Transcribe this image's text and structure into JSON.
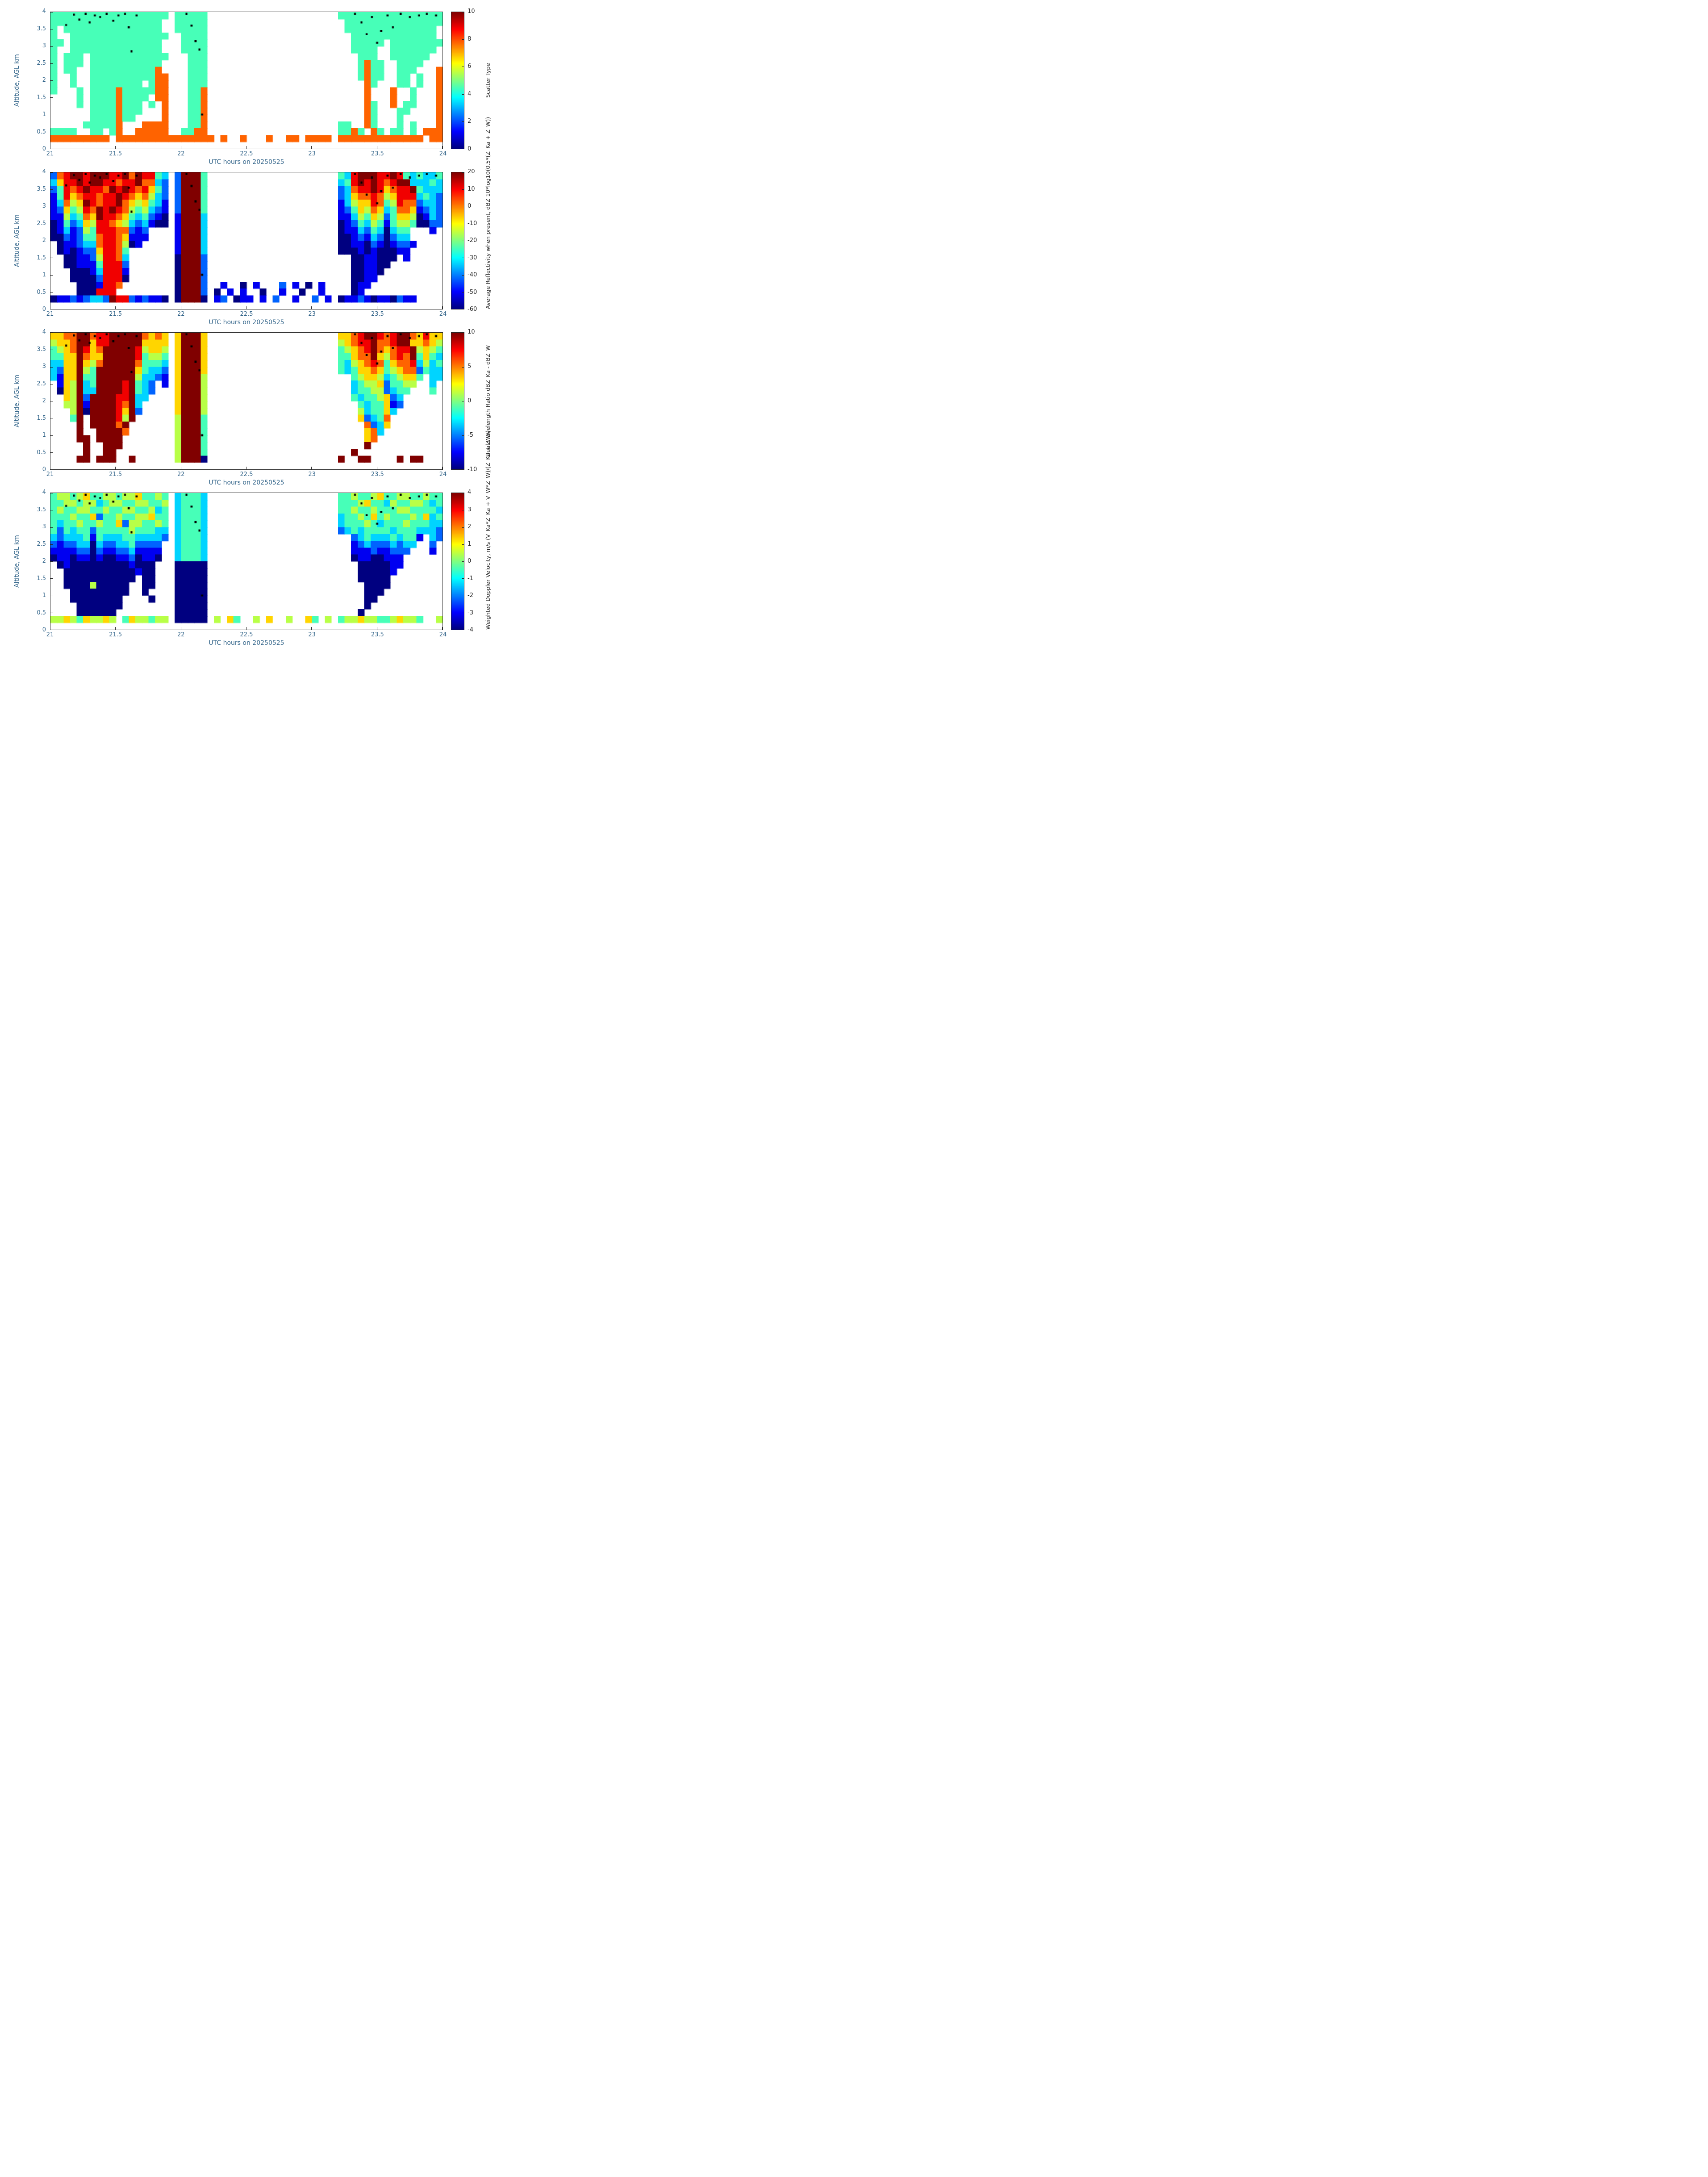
{
  "colors": {
    "axis_text": "#33658a",
    "plot_border": "#262626",
    "background": "#ffffff",
    "dot_marker": "#000000",
    "colormap_low": "#00008f",
    "colormap_high": "#800000"
  },
  "encoding": {
    "colormap": "jet",
    "no_data": ".",
    "digit_to_value": "value = colorbar.range[0] + (digit/9)*(colorbar.range[1]-colorbar.range[0])",
    "numeric_items_in_rows": "a number N means a run of N empty (no-data) cells",
    "grid_cols": 60,
    "grid_rows": 20,
    "row_order": "top-to-bottom (4 km down to 0 km)",
    "x_cell_hours": 0.05,
    "y_cell_km": 0.2
  },
  "overlay_dots": {
    "marker": "small black dot (same positions on all four panels)",
    "points": [
      [
        21.12,
        3.62
      ],
      [
        21.18,
        3.92
      ],
      [
        21.22,
        3.78
      ],
      [
        21.27,
        3.95
      ],
      [
        21.3,
        3.7
      ],
      [
        21.34,
        3.9
      ],
      [
        21.38,
        3.85
      ],
      [
        21.43,
        3.95
      ],
      [
        21.48,
        3.75
      ],
      [
        21.52,
        3.9
      ],
      [
        21.57,
        3.95
      ],
      [
        21.6,
        3.55
      ],
      [
        21.62,
        2.85
      ],
      [
        21.66,
        3.9
      ],
      [
        22.04,
        3.95
      ],
      [
        22.08,
        3.6
      ],
      [
        22.11,
        3.15
      ],
      [
        22.14,
        2.9
      ],
      [
        22.16,
        1.0
      ],
      [
        23.33,
        3.95
      ],
      [
        23.38,
        3.7
      ],
      [
        23.42,
        3.35
      ],
      [
        23.46,
        3.85
      ],
      [
        23.5,
        3.1
      ],
      [
        23.53,
        3.45
      ],
      [
        23.58,
        3.9
      ],
      [
        23.62,
        3.55
      ],
      [
        23.68,
        3.95
      ],
      [
        23.75,
        3.85
      ],
      [
        23.82,
        3.9
      ],
      [
        23.88,
        3.95
      ],
      [
        23.95,
        3.9
      ]
    ]
  },
  "chart_data": [
    {
      "id": "scatter_type",
      "type": "heatmap",
      "xlabel": "UTC hours on 20250525",
      "ylabel": "Altitude, AGL km",
      "x_range": [
        21,
        24
      ],
      "y_range": [
        0,
        4
      ],
      "x_tick_labels": [
        "21",
        "21.5",
        "22",
        "22.5",
        "23",
        "23.5",
        "24"
      ],
      "y_tick_labels": [
        "0",
        "0.5",
        "1",
        "1.5",
        "2",
        "2.5",
        "3",
        "3.5",
        "4"
      ],
      "colorbar": {
        "range": [
          0,
          10
        ],
        "tick_labels": [
          "0",
          "2",
          "4",
          "6",
          "8",
          "10"
        ],
        "label_lines": [
          "Scatter Type"
        ]
      },
      "grid": [
        [
          "444444444444444444",
          1,
          "44444",
          20,
          "4444444444444444"
        ],
        [
          "44444444444444444.",
          1,
          "44444",
          20,
          ".444444444444444"
        ],
        [
          "4.444444444444444.",
          1,
          "44444",
          20,
          ".44444444444444."
        ],
        [
          "4..444444444444444",
          1,
          ".4444",
          20,
          "..4444444444444."
        ],
        [
          "44.44444444444444.",
          1,
          ".4444",
          20,
          "..44444.44444444"
        ],
        [
          "4..44444444444444.",
          1,
          ".4444",
          20,
          "..4444..4444444."
        ],
        [
          "4.444.444444444444",
          1,
          "..444",
          20,
          "...444..444444.."
        ],
        [
          "4.444.44444444444.",
          1,
          "..444",
          20,
          "...4744..4444..."
        ],
        [
          "4.44..44444444447.",
          1,
          "..444",
          20,
          "...4744..444...7"
        ],
        [
          "4..4..444444444477",
          1,
          "..444",
          20,
          "...4744..44.4..7"
        ],
        [
          "4..4..44444444.477",
          1,
          "..444",
          20,
          "....74...44.4..7"
        ],
        [
          "4...4.444474444477",
          1,
          "..447",
          20,
          "....7...7..4...7"
        ],
        [
          "....4.444474444.77",
          1,
          "..447",
          20,
          "....7...7..4...7"
        ],
        [
          "....4.44447444.4.7",
          1,
          "..447",
          20,
          "....74..7.44...7"
        ],
        [
          "......44447444...7",
          1,
          "..447",
          20,
          "....74...44....7"
        ],
        [
          "......4444744....7",
          1,
          "..447",
          20,
          "....74...4.....7"
        ],
        [
          ".....444447...7777",
          1,
          "..447",
          20,
          "44..74...4.4...7"
        ],
        [
          "4444..44.47..77777",
          1,
          ".4477",
          20,
          "4474.74.44.4.777"
        ],
        [
          "777777777.777777777",
          "77777",
          "7.7..7...7..77.7777.",
          "7777777777777.77"
        ],
        [
          60
        ]
      ]
    },
    {
      "id": "average_reflectivity",
      "type": "heatmap",
      "xlabel": "UTC hours on 20250525",
      "ylabel": "Altitude, AGL km",
      "x_range": [
        21,
        24
      ],
      "y_range": [
        0,
        4
      ],
      "x_tick_labels": [
        "21",
        "21.5",
        "22",
        "22.5",
        "23",
        "23.5",
        "24"
      ],
      "y_tick_labels": [
        "0",
        "0.5",
        "1",
        "1.5",
        "2",
        "2.5",
        "3",
        "3.5",
        "4"
      ],
      "colorbar": {
        "range": [
          -60,
          20
        ],
        "tick_labels": [
          "-60",
          "-50",
          "-40",
          "-30",
          "-20",
          "-10",
          "0",
          "10",
          "20"
        ],
        "label_lines": [
          "Average Reflectivity when present, dBZ",
          "10*log10(0.5*(Z_Ka + Z_W))"
        ]
      },
      "grid": [
        [
          "278998999889798843",
          1,
          "29994",
          20,
          "4389998898434334"
        ],
        [
          "368898998878897732",
          1,
          "29994",
          20,
          "3489898789933343"
        ],
        [
          "248789887989878642",
          1,
          "29994",
          20,
          "2378898678894333"
        ],
        [
          "148678878898767532",
          1,
          "29994",
          20,
          "2367787568883432"
        ],
        [
          "137569878897656431",
          1,
          "29994",
          20,
          "1356687458772332"
        ],
        [
          "126458798987545321",
          1,
          "29994",
          20,
          "1246576347761232"
        ],
        [
          "115347698876434210",
          1,
          "19993",
          20,
          "1135465246650132"
        ],
        [
          "014236588765323100",
          1,
          "19993",
          20,
          "0124354145540022"
        ],
        [
          "013125488877212",
          4,
          "19993",
          20,
          "01132430344...1."
        ],
        [
          "002124478876111",
          4,
          "19993",
          20,
          "00121320233",
          5
        ],
        [
          ".0112337887501",
          5,
          "19993",
          20,
          "001102101221",
          4
        ],
        [
          ".01012268874",
          7,
          "19993",
          20,
          "00010100011",
          5
        ],
        [
          "..0011258873",
          7,
          "09992",
          20,
          "..0011000.1",
          5
        ],
        [
          "..0011148882",
          7,
          "09992",
          20,
          "..001100",
          8
        ],
        [
          "...000138881",
          7,
          "09992",
          20,
          "..00110",
          9
        ],
        [
          "...000028880",
          7,
          "09992",
          20,
          "..0011",
          10
        ],
        [
          "....0001887",
          8,
          "09992",
          "..1..0.1...2.1.0.1..",
          "..011",
          11
        ],
        [
          "....000888",
          9,
          "09992",
          ".0.1.1..0..1..0..1..",
          "..01",
          12
        ],
        [
          "011212332988212110",
          1,
          "09990",
          ".12.011.1.2..1..2.1.",
          "011210110211",
          4
        ],
        [
          60
        ]
      ]
    },
    {
      "id": "dual_wavelength_ratio",
      "type": "heatmap",
      "xlabel": "UTC hours on 20250525",
      "ylabel": "Altitude, AGL km",
      "x_range": [
        21,
        24
      ],
      "y_range": [
        0,
        4
      ],
      "x_tick_labels": [
        "21",
        "21.5",
        "22",
        "22.5",
        "23",
        "23.5",
        "24"
      ],
      "y_tick_labels": [
        "0",
        "0.5",
        "1",
        "1.5",
        "2",
        "2.5",
        "3",
        "3.5",
        "4"
      ],
      "colorbar": {
        "range": [
          -10,
          10
        ],
        "tick_labels": [
          "-10",
          "-5",
          "0",
          "5",
          "10"
        ],
        "label_lines": [
          "Dual Wavelength Ratio",
          "dBZ_Ka - dBZ_W"
        ]
      },
      "grid": [
        [
          "667799788999997676",
          1,
          "69996",
          20,
          "6678998789976866"
        ],
        [
          "566799688999996666",
          1,
          "69996",
          20,
          "5678897789966765"
        ],
        [
          "456798679999985665",
          1,
          "69996",
          20,
          "4567897678895654"
        ],
        [
          "446697669999984554",
          1,
          "69996",
          20,
          "4467796578794643"
        ],
        [
          "336696579999974443",
          1,
          "69996",
          20,
          "4356787467783534"
        ],
        [
          "326695499999964332",
          1,
          "69996",
          20,
          "4346676456772433"
        ],
        [
          "316694499999953321",
          1,
          "69995",
          20,
          "..45665345664.33"
        ],
        [
          ".165934999989432.1",
          1,
          "69995",
          20,
          "..3455624455..3."
        ],
        [
          ".065933999989432",
          3,
          "69995",
          20,
          "..344552344...4."
        ],
        [
          "..6592999988933",
          4,
          "69995",
          20,
          "..43445623",
          6
        ],
        [
          "..559199998793",
          5,
          "69995",
          20,
          "...4344612",
          6
        ],
        [
          "...59099998692",
          5,
          "69995",
          20,
          "...534463",
          7
        ],
        [
          "...49.9999859",
          6,
          "59994",
          20,
          "...62347",
          8
        ],
        [
          "....9.999979",
          7,
          "59994",
          20,
          "....7236",
          8
        ],
        [
          "....9..99997",
          7,
          "59994",
          20,
          "....673",
          9
        ],
        [
          "....99.9999",
          8,
          "59994",
          20,
          "....67",
          10
        ],
        [
          ".....9..999",
          8,
          "59994",
          20,
          "....9",
          11
        ],
        [
          ".....9..99",
          9,
          "59994",
          20,
          "..9",
          13
        ],
        [
          "....99.999..9",
          6,
          "59990",
          20,
          "9..99....9.99",
          3
        ],
        [
          60
        ]
      ]
    },
    {
      "id": "weighted_doppler_velocity",
      "type": "heatmap",
      "xlabel": "UTC hours on 20250525",
      "ylabel": "Altitude, AGL km",
      "x_range": [
        21,
        24
      ],
      "y_range": [
        0,
        4
      ],
      "x_tick_labels": [
        "21",
        "21.5",
        "22",
        "22.5",
        "23",
        "23.5",
        "24"
      ],
      "y_tick_labels": [
        "0",
        "0.5",
        "1",
        "1.5",
        "2",
        "2.5",
        "3",
        "3.5",
        "4"
      ],
      "colorbar": {
        "range": [
          -4,
          4
        ],
        "tick_labels": [
          "-4",
          "-3",
          "-2",
          "-1",
          "0",
          "1",
          "2",
          "3",
          "4"
        ],
        "label_lines": [
          "Weighted Doppler Velocity, m/s",
          "(V_Ka*Z_Ka + V_W*Z_W)/(Z_Ka + Z_W)"
        ]
      },
      "grid": [
        [
          "455456445545564454",
          1,
          "34443",
          20,
          "4454456445544544"
        ],
        [
          "445545534554455445",
          1,
          "34443",
          20,
          "4445644354455434"
        ],
        [
          "454455445445544534",
          1,
          "34443",
          20,
          "4454454445544443"
        ],
        [
          "444544624454455644",
          1,
          "34443",
          20,
          "3445464544454634"
        ],
        [
          "434454454462554454",
          1,
          "34443",
          20,
          "3444543444544433"
        ],
        [
          "424344244444544433",
          1,
          "34443",
          20,
          "2343444434443332"
        ],
        [
          "323334143334433332",
          1,
          "34443",
          20,
          "..23433343441.32"
        ],
        [
          "21223303223342222.",
          1,
          "34443",
          20,
          "..1232223233..2."
        ],
        [
          "11112202112231111.",
          1,
          "34443",
          20,
          "..111211222...1."
        ],
        [
          "01101101001120110.",
          1,
          "34443",
          20,
          "..01100111",
          6
        ],
        [
          ".010000000001000",
          3,
          "00000",
          20,
          "...0000011",
          6
        ],
        [
          "..00000000000100",
          3,
          "00000",
          20,
          "...000001",
          7
        ],
        [
          "..00000000000.00",
          3,
          "00000",
          20,
          "...00000",
          8
        ],
        [
          "..0000500000..00",
          3,
          "00000",
          20,
          "....0000",
          8
        ],
        [
          "...000000000..0",
          4,
          "00000",
          20,
          "....000",
          9
        ],
        [
          "...00000000....0",
          3,
          "00000",
          20,
          "....00",
          10
        ],
        [
          "....0000000",
          8,
          "00000",
          20,
          "....0",
          11
        ],
        [
          "....000000",
          9,
          "00000",
          20,
          "...0",
          12
        ],
        [
          "5565465565.4655455",
          1,
          "00000",
          ".5.64..5.6..5..64.5.",
          "4556554456554..5"
        ],
        [
          60
        ]
      ]
    }
  ]
}
